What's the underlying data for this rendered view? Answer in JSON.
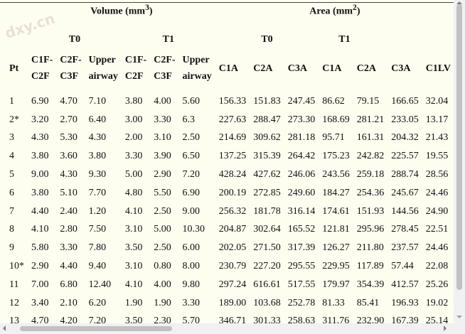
{
  "watermark": "dxy.cn",
  "table": {
    "group_headers": {
      "volume": "Volume (mm",
      "volume_sup": "3",
      "volume_close": ")",
      "area": "Area (mm",
      "area_sup": "2",
      "area_close": ")"
    },
    "sub_headers": {
      "vol_t0": "T0",
      "vol_t1": "T1",
      "area_t0": "T0",
      "area_t1": "T1"
    },
    "columns": [
      "Pt",
      "C1F-C2F",
      "C2F-C3F",
      "Upper airway",
      "C1F-C2F",
      "C2F-C3F",
      "Upper airway",
      "C1A",
      "C2A",
      "C3A",
      "C1A",
      "C2A",
      "C3A",
      "C1LV"
    ],
    "col_lines": [
      [
        "Pt"
      ],
      [
        "C1F-",
        "C2F"
      ],
      [
        "C2F-",
        "C3F"
      ],
      [
        "Upper",
        "airway"
      ],
      [
        "C1F-",
        "C2F"
      ],
      [
        "C2F-",
        "C3F"
      ],
      [
        "Upper",
        "airway"
      ],
      [
        "C1A"
      ],
      [
        "C2A"
      ],
      [
        "C3A"
      ],
      [
        "C1A"
      ],
      [
        "C2A"
      ],
      [
        "C3A"
      ],
      [
        "C1LV"
      ]
    ],
    "rows": [
      [
        "1",
        "6.90",
        "4.70",
        "7.10",
        "3.80",
        "4.00",
        "5.60",
        "156.33",
        "151.83",
        "247.45",
        "86.62",
        "79.15",
        "166.65",
        "32.04"
      ],
      [
        "2*",
        "3.20",
        "2.70",
        "6.40",
        "3.00",
        "3.30",
        "6.3",
        "227.63",
        "288.47",
        "273.30",
        "168.69",
        "281.21",
        "233.05",
        "13.17"
      ],
      [
        "3",
        "4.30",
        "5.30",
        "4.30",
        "2.00",
        "3.10",
        "2.50",
        "214.69",
        "309.62",
        "281.18",
        "95.71",
        "161.31",
        "204.32",
        "21.43"
      ],
      [
        "4",
        "3.80",
        "3.60",
        "3.80",
        "3.30",
        "3.90",
        "6.50",
        "137.25",
        "315.39",
        "264.42",
        "175.23",
        "242.82",
        "225.57",
        "19.55"
      ],
      [
        "5",
        "9.00",
        "4.30",
        "9.30",
        "5.00",
        "2.90",
        "7.20",
        "428.24",
        "427.62",
        "246.06",
        "243.56",
        "259.18",
        "288.74",
        "28.56"
      ],
      [
        "6",
        "3.80",
        "5.10",
        "7.70",
        "4.80",
        "5.50",
        "6.90",
        "200.19",
        "272.85",
        "249.60",
        "184.27",
        "254.36",
        "245.67",
        "24.46"
      ],
      [
        "7",
        "4.40",
        "2.40",
        "1.20",
        "4.10",
        "2.50",
        "9.00",
        "256.32",
        "181.78",
        "316.14",
        "174.61",
        "151.93",
        "144.56",
        "24.90"
      ],
      [
        "8",
        "4.10",
        "2.80",
        "7.50",
        "3.10",
        "5.00",
        "10.30",
        "204.87",
        "302.64",
        "165.52",
        "121.81",
        "295.96",
        "278.45",
        "22.51"
      ],
      [
        "9",
        "5.80",
        "3.30",
        "7.80",
        "3.50",
        "2.50",
        "6.00",
        "202.05",
        "271.50",
        "317.39",
        "126.27",
        "211.80",
        "237.57",
        "24.46"
      ],
      [
        "10*",
        "2.90",
        "4.40",
        "9.40",
        "3.10",
        "0.80",
        "8.00",
        "230.79",
        "227.20",
        "295.55",
        "229.95",
        "117.89",
        "57.44",
        "22.08"
      ],
      [
        "11",
        "7.00",
        "6.80",
        "12.40",
        "4.10",
        "4.00",
        "9.80",
        "297.24",
        "616.61",
        "517.55",
        "179.97",
        "354.39",
        "412.57",
        "25.26"
      ],
      [
        "12",
        "3.40",
        "2.10",
        "6.20",
        "1.90",
        "1.90",
        "3.30",
        "189.00",
        "103.68",
        "252.78",
        "81.33",
        "85.41",
        "196.93",
        "19.02"
      ],
      [
        "13",
        "4.70",
        "4.20",
        "7.20",
        "3.50",
        "2.30",
        "5.70",
        "346.71",
        "301.33",
        "258.63",
        "311.76",
        "232.90",
        "167.39",
        "25.14"
      ]
    ]
  }
}
